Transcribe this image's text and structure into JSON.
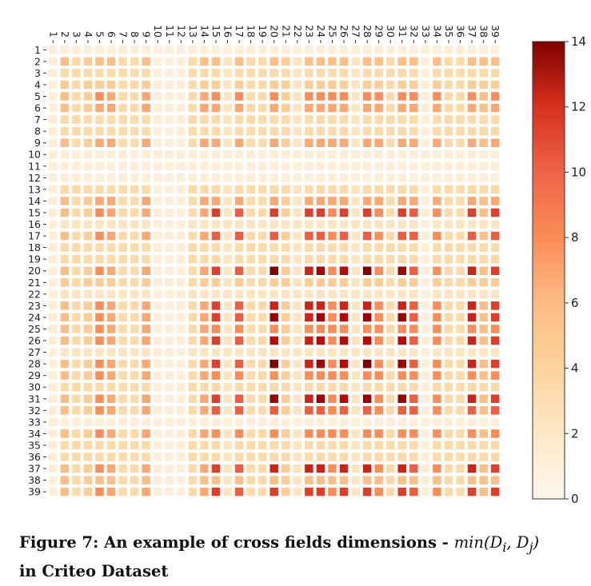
{
  "chart_data": {
    "type": "heatmap",
    "title": "",
    "x_tick_labels": [
      "1",
      "2",
      "3",
      "4",
      "5",
      "6",
      "7",
      "8",
      "9",
      "10",
      "11",
      "12",
      "13",
      "14",
      "15",
      "16",
      "17",
      "18",
      "19",
      "20",
      "21",
      "22",
      "23",
      "24",
      "25",
      "26",
      "27",
      "28",
      "29",
      "30",
      "31",
      "32",
      "33",
      "34",
      "35",
      "36",
      "37",
      "38",
      "39"
    ],
    "y_tick_labels": [
      "1",
      "2",
      "3",
      "4",
      "5",
      "6",
      "7",
      "8",
      "9",
      "10",
      "11",
      "12",
      "13",
      "14",
      "15",
      "16",
      "17",
      "18",
      "19",
      "20",
      "21",
      "22",
      "23",
      "24",
      "25",
      "26",
      "27",
      "28",
      "29",
      "30",
      "31",
      "32",
      "33",
      "34",
      "35",
      "36",
      "37",
      "38",
      "39"
    ],
    "field_dims": [
      1,
      5,
      3,
      4,
      7,
      6,
      3,
      3,
      6,
      1,
      1,
      1,
      3,
      6,
      10,
      2,
      9,
      3,
      3,
      15,
      4,
      2,
      11,
      13,
      7,
      12,
      2,
      14,
      7,
      3,
      13,
      9,
      1,
      7,
      3,
      3,
      11,
      5,
      10
    ],
    "cell_rule": "value[i][j] = min(field_dims[i], field_dims[j]) on the 0-14 scale",
    "colorbar": {
      "min": 0,
      "max": 14,
      "ticks": [
        0,
        2,
        4,
        6,
        8,
        10,
        12,
        14
      ],
      "colormap": "OrRd"
    }
  },
  "caption": {
    "prefix": "Figure 7: An example of cross fields dimensions - ",
    "formula": "min(D",
    "sub_i": "i",
    "sep": ", D",
    "sub_j": "j",
    "close": ")",
    "line2": "in Criteo Dataset"
  }
}
